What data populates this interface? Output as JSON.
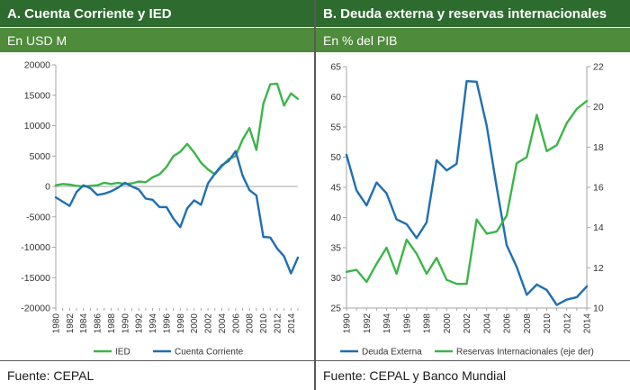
{
  "panel_a": {
    "title": "A. Cuenta Corriente y IED",
    "subtitle": "En USD M",
    "source": "Fuente: CEPAL"
  },
  "panel_b": {
    "title": "B. Deuda externa y reservas internacionales",
    "subtitle": "En % del PIB",
    "source": "Fuente: CEPAL y Banco Mundial"
  },
  "colors": {
    "green": "#3cb54a",
    "blue": "#1f6fb2",
    "header_dark": "#2e6b2f",
    "header_light": "#4e8b3b"
  },
  "chart_data": [
    {
      "type": "line",
      "title": "A. Cuenta Corriente y IED",
      "subtitle": "En USD M",
      "xlabel": "",
      "ylabel": "",
      "ylim": [
        -20000,
        20000
      ],
      "yticks": [
        20000,
        15000,
        10000,
        5000,
        0,
        -5000,
        -10000,
        -15000,
        -20000
      ],
      "ytick_labels": [
        "20000",
        "15000",
        "10000",
        "5000",
        "0",
        "-5000",
        "-10000",
        "-15000",
        "-20000"
      ],
      "x": [
        1980,
        1981,
        1982,
        1983,
        1984,
        1985,
        1986,
        1987,
        1988,
        1989,
        1990,
        1991,
        1992,
        1993,
        1994,
        1995,
        1996,
        1997,
        1998,
        1999,
        2000,
        2001,
        2002,
        2003,
        2004,
        2005,
        2006,
        2007,
        2008,
        2009,
        2010,
        2011,
        2012,
        2013,
        2014,
        2015
      ],
      "xticks": [
        1980,
        1982,
        1984,
        1986,
        1988,
        1990,
        1992,
        1994,
        1996,
        1998,
        2000,
        2002,
        2004,
        2006,
        2008,
        2010,
        2012,
        2014
      ],
      "xtick_labels": [
        "1980",
        "1982",
        "1984",
        "1986",
        "1988",
        "1990",
        "1992",
        "1994",
        "1996",
        "1998",
        "2000",
        "2002",
        "2004",
        "2006",
        "2008",
        "2010",
        "2012",
        "2014"
      ],
      "series": [
        {
          "name": "IED",
          "color": "#3cb54a",
          "values": [
            200,
            400,
            300,
            100,
            0,
            100,
            200,
            600,
            400,
            600,
            400,
            500,
            800,
            700,
            1500,
            2000,
            3200,
            5000,
            5700,
            7000,
            5600,
            3900,
            2800,
            2000,
            3300,
            4500,
            5000,
            7700,
            9600,
            6000,
            13600,
            16800,
            16900,
            13300,
            15300,
            14400
          ]
        },
        {
          "name": "Cuenta Corriente",
          "color": "#1f6fb2",
          "values": [
            -1800,
            -2500,
            -3200,
            -900,
            200,
            -300,
            -1400,
            -1200,
            -800,
            -200,
            600,
            0,
            -500,
            -2000,
            -2200,
            -3400,
            -3400,
            -5300,
            -6700,
            -3600,
            -2300,
            -3000,
            500,
            2100,
            3500,
            4200,
            5800,
            1800,
            -600,
            -1500,
            -8300,
            -8400,
            -10200,
            -11500,
            -14300,
            -11700
          ]
        }
      ],
      "grid": false,
      "legend": "bottom"
    },
    {
      "type": "line",
      "title": "B. Deuda externa y reservas internacionales",
      "subtitle": "En % del PIB",
      "xlabel": "",
      "ylabel": "",
      "ylim": [
        25,
        65
      ],
      "yticks": [
        65,
        60,
        55,
        50,
        45,
        40,
        35,
        30,
        25
      ],
      "ytick_labels": [
        "65",
        "60",
        "55",
        "50",
        "45",
        "40",
        "35",
        "30",
        "25"
      ],
      "y2lim": [
        10,
        22
      ],
      "y2ticks": [
        22,
        20,
        18,
        16,
        14,
        12,
        10
      ],
      "y2tick_labels": [
        "22",
        "20",
        "18",
        "16",
        "14",
        "12",
        "10"
      ],
      "x": [
        1990,
        1991,
        1992,
        1993,
        1994,
        1995,
        1996,
        1997,
        1998,
        1999,
        2000,
        2001,
        2002,
        2003,
        2004,
        2005,
        2006,
        2007,
        2008,
        2009,
        2010,
        2011,
        2012,
        2013,
        2014
      ],
      "xticks": [
        1990,
        1992,
        1994,
        1996,
        1998,
        2000,
        2002,
        2004,
        2006,
        2008,
        2010,
        2012,
        2014
      ],
      "xtick_labels": [
        "1990",
        "1992",
        "1994",
        "1996",
        "1998",
        "2000",
        "2002",
        "2004",
        "2006",
        "2008",
        "2010",
        "2012",
        "2014"
      ],
      "series": [
        {
          "name": "Deuda Externa",
          "axis": "left",
          "color": "#1f6fb2",
          "values": [
            50.4,
            44.5,
            42.0,
            45.8,
            44.0,
            39.7,
            38.9,
            36.6,
            39.2,
            49.5,
            47.8,
            48.9,
            62.6,
            62.5,
            55.2,
            45.0,
            35.4,
            31.8,
            27.2,
            28.9,
            28.0,
            25.5,
            26.4,
            26.8,
            28.6
          ]
        },
        {
          "name": "Reservas Internacionales (eje der)",
          "axis": "right",
          "color": "#3cb54a",
          "values": [
            11.8,
            11.9,
            11.3,
            12.2,
            13.0,
            11.7,
            13.4,
            12.7,
            11.7,
            12.5,
            11.4,
            11.2,
            11.2,
            14.4,
            13.7,
            13.8,
            14.6,
            17.2,
            17.5,
            19.6,
            17.8,
            18.1,
            19.2,
            19.9,
            20.3
          ]
        }
      ],
      "grid": false,
      "legend": "bottom"
    }
  ]
}
